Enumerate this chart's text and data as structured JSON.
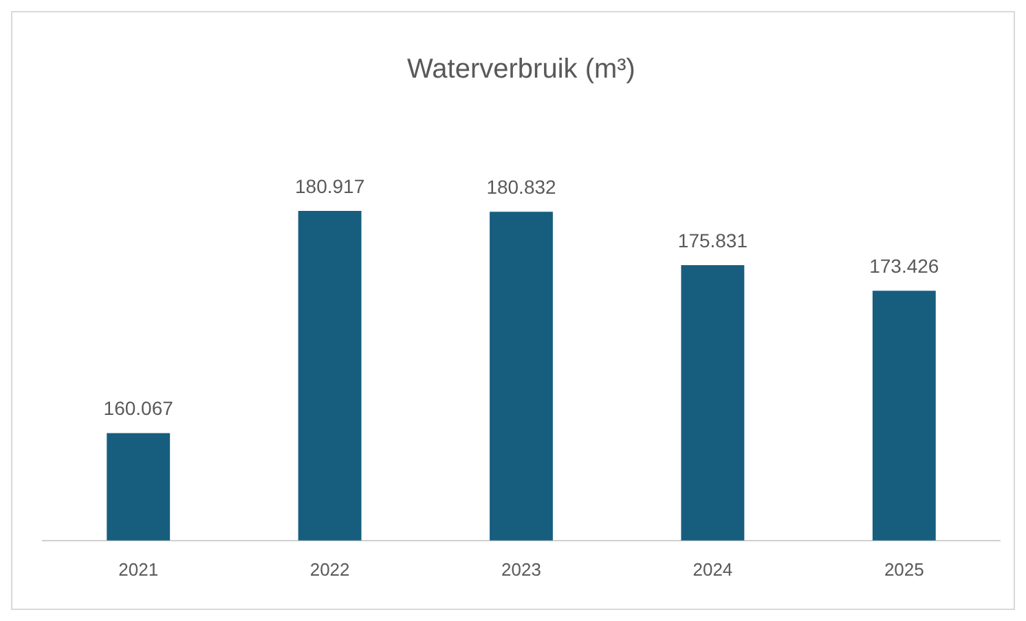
{
  "chart_data": {
    "type": "bar",
    "title": "Waterverbruik (m³)",
    "categories": [
      "2021",
      "2022",
      "2023",
      "2024",
      "2025"
    ],
    "values": [
      160067,
      180917,
      180832,
      175831,
      173426
    ],
    "value_labels": [
      "160.067",
      "180.917",
      "180.832",
      "175.831",
      "173.426"
    ],
    "color": "#175e7e",
    "grid": false,
    "legend": false
  }
}
